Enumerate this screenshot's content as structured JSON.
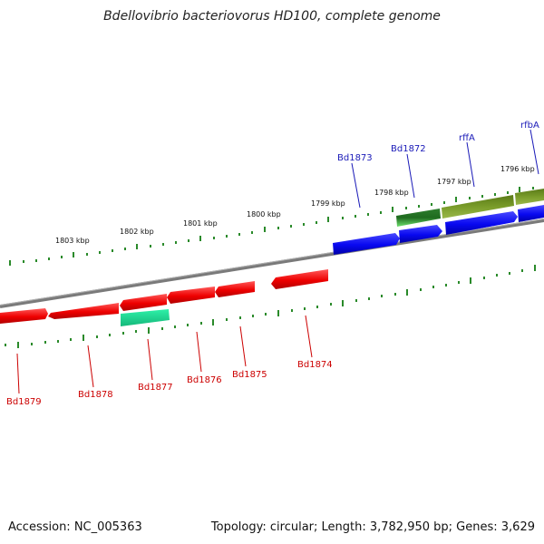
{
  "title": "Bdellovibrio bacteriovorus HD100, complete genome",
  "footer": {
    "accession": "Accession: NC_005363",
    "summary": "Topology: circular; Length: 3,782,950 bp; Genes: 3,629"
  },
  "ticks": [
    "1796 kbp",
    "1797 kbp",
    "1798 kbp",
    "1799 kbp",
    "1800 kbp",
    "1801 kbp",
    "1802 kbp",
    "1803 kbp"
  ],
  "genes_top": [
    {
      "label": "Bd1873",
      "color": "#1a1ab8"
    },
    {
      "label": "Bd1872",
      "color": "#1a1ab8"
    },
    {
      "label": "rffA",
      "color": "#1a1ab8"
    },
    {
      "label": "rfbA",
      "color": "#1a1ab8"
    }
  ],
  "genes_bottom": [
    {
      "label": "Bd1879",
      "color": "#cc0000"
    },
    {
      "label": "Bd1878",
      "color": "#cc0000"
    },
    {
      "label": "Bd1877",
      "color": "#cc0000"
    },
    {
      "label": "Bd1876",
      "color": "#cc0000"
    },
    {
      "label": "Bd1875",
      "color": "#cc0000"
    },
    {
      "label": "Bd1874",
      "color": "#cc0000"
    }
  ],
  "colors": {
    "forward_cds": "#0a0aff",
    "reverse_cds": "#ff1a1a",
    "rna_forward": "#3cb83c",
    "rna_reverse": "#2ee8a0",
    "other": "#6b8c1e",
    "tick": "#2a8a2a",
    "backbone": "#808080"
  }
}
